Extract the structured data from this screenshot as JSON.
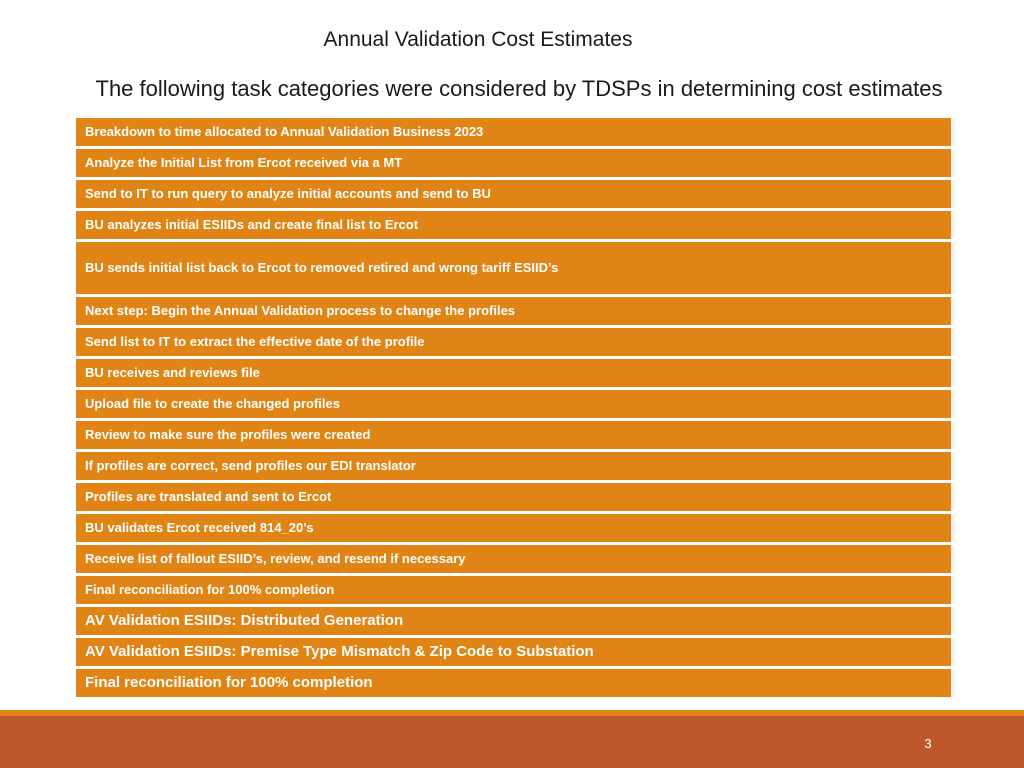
{
  "slide": {
    "title": "Annual Validation Cost Estimates",
    "subtitle": "The following task categories were considered by TDSPs in determining cost estimates",
    "page_number": "3"
  },
  "tasks": [
    {
      "label": "Breakdown to time allocated to Annual Validation Business 2023"
    },
    {
      "label": "Analyze the Initial List from Ercot received via a MT"
    },
    {
      "label": "Send to IT to run query to analyze initial accounts and send to BU"
    },
    {
      "label": "BU analyzes initial ESIIDs and create final list to Ercot"
    },
    {
      "label": "BU sends initial list back to Ercot to removed retired and wrong tariff ESIID’s"
    },
    {
      "label": "Next step: Begin the Annual Validation process to change the profiles"
    },
    {
      "label": "Send list to IT to extract the effective date of the profile"
    },
    {
      "label": "BU receives and reviews file"
    },
    {
      "label": "Upload file to create the changed profiles"
    },
    {
      "label": "Review to make sure the profiles were created"
    },
    {
      "label": "If profiles are correct, send profiles our EDI translator"
    },
    {
      "label": "Profiles are translated and sent to Ercot"
    },
    {
      "label": "BU validates Ercot received 814_20’s"
    },
    {
      "label": "Receive list of fallout ESIID’s, review, and resend if necessary"
    },
    {
      "label": "Final reconciliation for 100% completion"
    },
    {
      "label": "AV Validation ESIIDs: Distributed Generation"
    },
    {
      "label": "AV Validation ESIIDs: Premise Type Mismatch & Zip Code to Substation"
    },
    {
      "label": "Final reconciliation for 100% completion"
    }
  ],
  "colors": {
    "row_fill": "#e08515",
    "footer_band": "#bc582a",
    "footer_rule": "#e08515",
    "text_on_fill": "#ffffff"
  }
}
